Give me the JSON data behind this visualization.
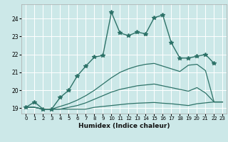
{
  "xlabel": "Humidex (Indice chaleur)",
  "bg_color": "#cce8e8",
  "grid_color": "#ffffff",
  "line_color": "#2d7268",
  "xlim": [
    -0.5,
    23.5
  ],
  "ylim": [
    18.7,
    24.8
  ],
  "yticks": [
    19,
    20,
    21,
    22,
    23,
    24
  ],
  "xticks": [
    0,
    1,
    2,
    3,
    4,
    5,
    6,
    7,
    8,
    9,
    10,
    11,
    12,
    13,
    14,
    15,
    16,
    17,
    18,
    19,
    20,
    21,
    22,
    23
  ],
  "lines": [
    {
      "x": [
        0,
        1,
        2,
        3,
        4,
        5,
        6,
        7,
        8,
        9,
        10,
        11,
        12,
        13,
        14,
        15,
        16,
        17,
        18,
        19,
        20,
        21,
        22
      ],
      "y": [
        19.05,
        19.35,
        18.95,
        18.95,
        19.6,
        20.0,
        20.8,
        21.35,
        21.85,
        21.95,
        24.35,
        23.2,
        23.05,
        23.25,
        23.15,
        24.05,
        24.2,
        22.65,
        21.8,
        21.8,
        21.9,
        22.0,
        21.5
      ],
      "marker": "*",
      "lw": 1.0
    },
    {
      "x": [
        0,
        1,
        2,
        3,
        4,
        5,
        6,
        7,
        8,
        9,
        10,
        11,
        12,
        13,
        14,
        15,
        16,
        17,
        18,
        19,
        20,
        21,
        22,
        23
      ],
      "y": [
        19.05,
        19.05,
        18.95,
        18.95,
        19.1,
        19.25,
        19.45,
        19.7,
        20.0,
        20.35,
        20.7,
        21.0,
        21.2,
        21.35,
        21.45,
        21.5,
        21.35,
        21.2,
        21.05,
        21.4,
        21.45,
        21.1,
        19.35,
        19.35
      ],
      "marker": null,
      "lw": 0.9
    },
    {
      "x": [
        0,
        1,
        2,
        3,
        4,
        5,
        6,
        7,
        8,
        9,
        10,
        11,
        12,
        13,
        14,
        15,
        16,
        17,
        18,
        19,
        20,
        21,
        22,
        23
      ],
      "y": [
        19.05,
        19.05,
        18.95,
        18.95,
        18.95,
        19.05,
        19.15,
        19.3,
        19.5,
        19.7,
        19.9,
        20.05,
        20.15,
        20.25,
        20.3,
        20.35,
        20.25,
        20.15,
        20.05,
        19.95,
        20.15,
        19.85,
        19.35,
        19.35
      ],
      "marker": null,
      "lw": 0.9
    },
    {
      "x": [
        0,
        1,
        2,
        3,
        4,
        5,
        6,
        7,
        8,
        9,
        10,
        11,
        12,
        13,
        14,
        15,
        16,
        17,
        18,
        19,
        20,
        21,
        22,
        23
      ],
      "y": [
        19.05,
        19.05,
        18.95,
        18.95,
        18.95,
        18.95,
        18.95,
        18.95,
        19.05,
        19.1,
        19.15,
        19.2,
        19.25,
        19.28,
        19.3,
        19.32,
        19.28,
        19.25,
        19.2,
        19.15,
        19.25,
        19.3,
        19.35,
        19.35
      ],
      "marker": null,
      "lw": 0.9
    }
  ]
}
